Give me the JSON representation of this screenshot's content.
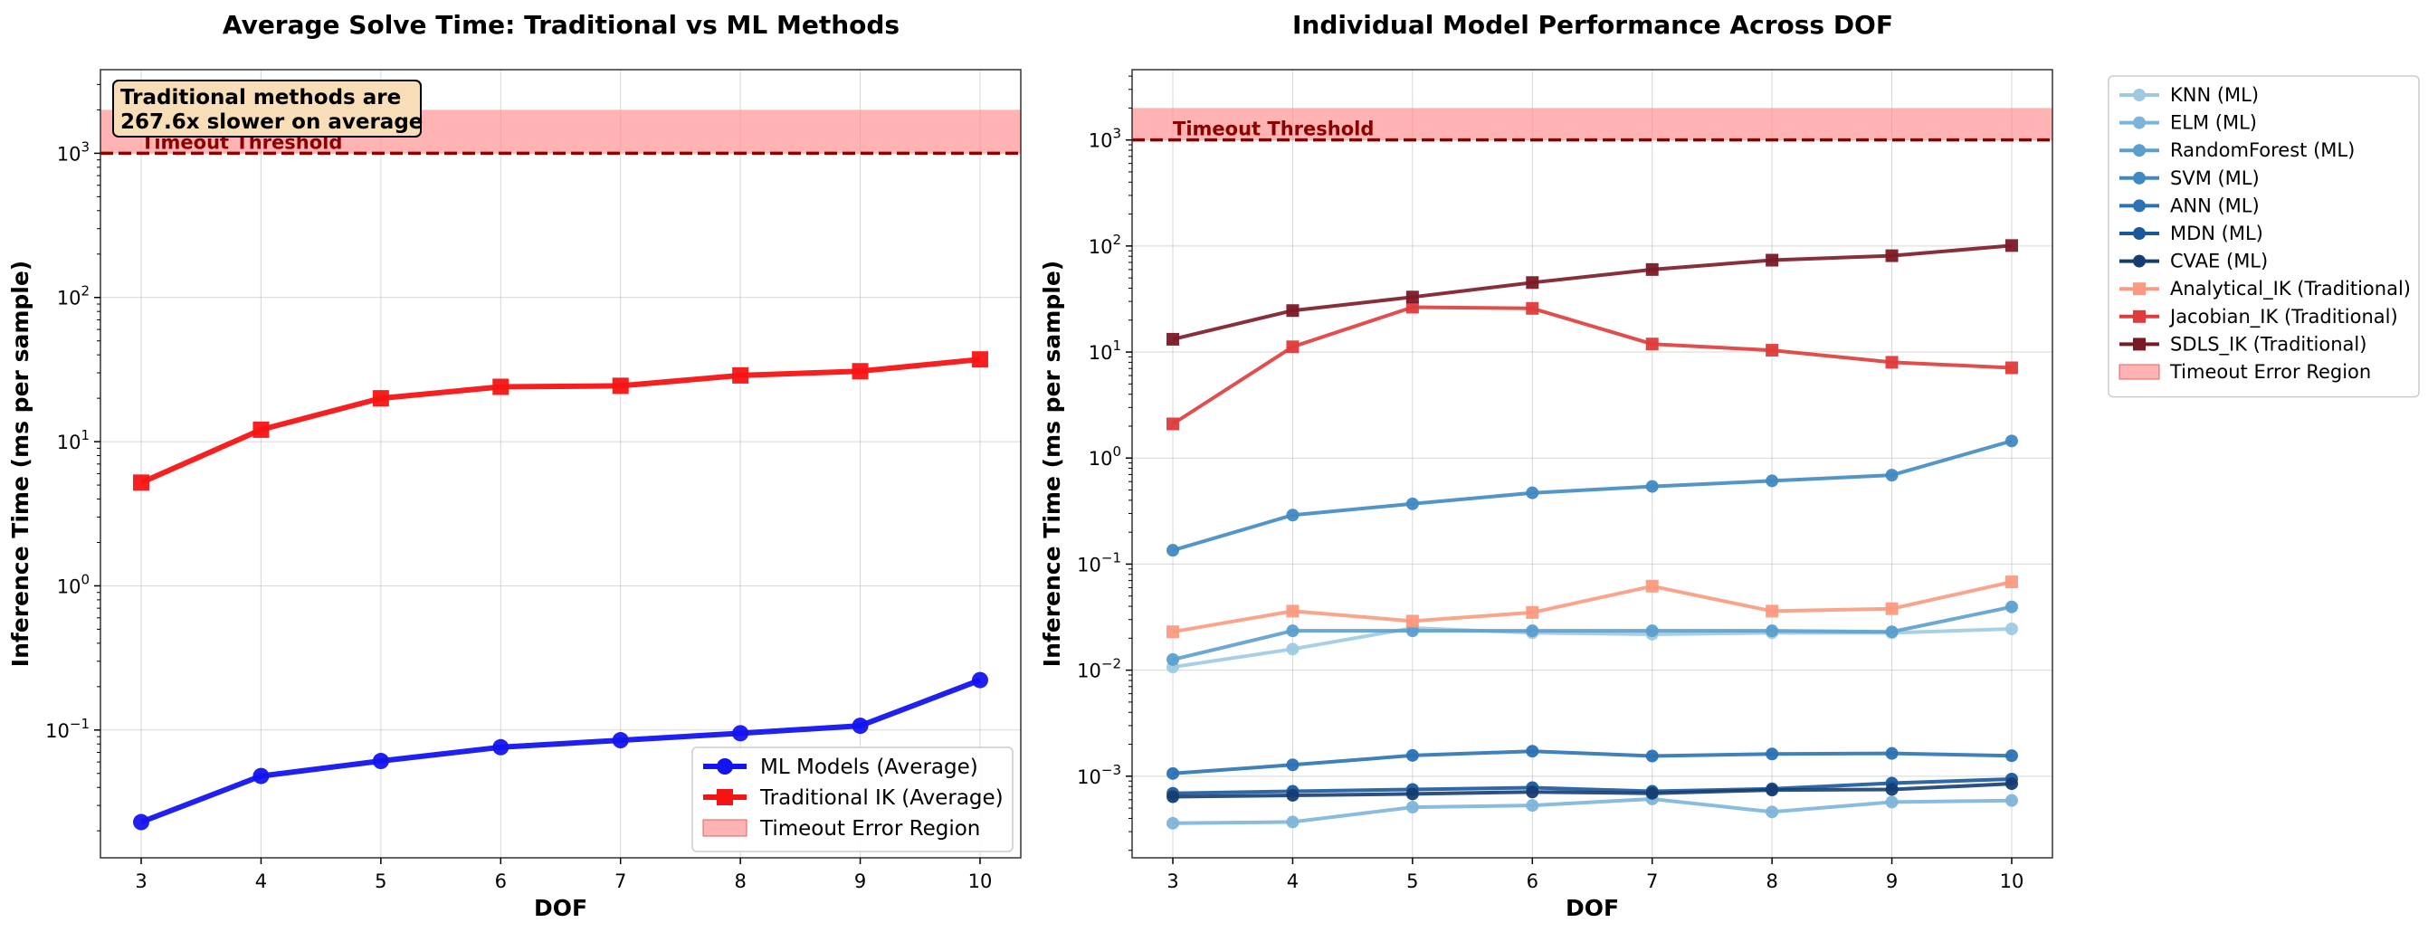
{
  "chart_data": [
    {
      "type": "line",
      "title": "Average Solve Time: Traditional vs ML Methods",
      "xlabel": "DOF",
      "ylabel": "Inference Time (ms per sample)",
      "yscale": "log",
      "ylim": [
        0.013,
        3800
      ],
      "xlim": [
        2.66,
        10.34
      ],
      "x": [
        3,
        4,
        5,
        6,
        7,
        8,
        9,
        10
      ],
      "yticks": [
        {
          "value": 0.1,
          "base": "10",
          "exp": "−1"
        },
        {
          "value": 1,
          "base": "10",
          "exp": "0"
        },
        {
          "value": 10,
          "base": "10",
          "exp": "1"
        },
        {
          "value": 100,
          "base": "10",
          "exp": "2"
        },
        {
          "value": 1000,
          "base": "10",
          "exp": "3"
        }
      ],
      "grid": true,
      "legend_position": "lower-right",
      "threshold": {
        "value": 1000,
        "label": "Timeout Threshold",
        "color": "#8b0000"
      },
      "timeout_region": {
        "ymin": 1000,
        "ymax": 2000,
        "label": "Timeout Error Region",
        "color": "#ff8a8a"
      },
      "annotation": [
        "Traditional methods are",
        "267.6x slower on average"
      ],
      "series": [
        {
          "name": "ML Models (Average)",
          "color": "#1414f0",
          "marker": "circle",
          "values": [
            0.023,
            0.048,
            0.061,
            0.076,
            0.085,
            0.095,
            0.107,
            0.222
          ]
        },
        {
          "name": "Traditional IK (Average)",
          "color": "#f51414",
          "marker": "square",
          "values": [
            5.2,
            12.1,
            20.0,
            24.0,
            24.4,
            28.8,
            30.8,
            37.2
          ]
        }
      ]
    },
    {
      "type": "line",
      "title": "Individual Model Performance Across DOF",
      "xlabel": "DOF",
      "ylabel": "Inference Time (ms per sample)",
      "yscale": "log",
      "ylim": [
        0.00017,
        4600
      ],
      "xlim": [
        2.66,
        10.34
      ],
      "x": [
        3,
        4,
        5,
        6,
        7,
        8,
        9,
        10
      ],
      "yticks": [
        {
          "value": 0.001,
          "base": "10",
          "exp": "−3"
        },
        {
          "value": 0.01,
          "base": "10",
          "exp": "−2"
        },
        {
          "value": 0.1,
          "base": "10",
          "exp": "−1"
        },
        {
          "value": 1,
          "base": "10",
          "exp": "0"
        },
        {
          "value": 10,
          "base": "10",
          "exp": "1"
        },
        {
          "value": 100,
          "base": "10",
          "exp": "2"
        },
        {
          "value": 1000,
          "base": "10",
          "exp": "3"
        }
      ],
      "grid": true,
      "legend_position": "outside-right",
      "threshold": {
        "value": 1000,
        "label": "Timeout Threshold",
        "color": "#8b0000"
      },
      "timeout_region": {
        "ymin": 1000,
        "ymax": 2000,
        "label": "Timeout Error Region",
        "color": "#ff8a8a"
      },
      "series": [
        {
          "name": "KNN (ML)",
          "color": "#9ecae1",
          "marker": "circle",
          "values": [
            0.0107,
            0.0158,
            0.025,
            0.0225,
            0.0218,
            0.0225,
            0.0225,
            0.0245
          ]
        },
        {
          "name": "ELM (ML)",
          "color": "#7db5da",
          "marker": "circle",
          "values": [
            0.00036,
            0.00037,
            0.00051,
            0.00053,
            0.00061,
            0.00046,
            0.00057,
            0.00059
          ]
        },
        {
          "name": "RandomForest (ML)",
          "color": "#5b9fcd",
          "marker": "circle",
          "values": [
            0.0126,
            0.0235,
            0.0235,
            0.0235,
            0.0235,
            0.0235,
            0.023,
            0.0395
          ]
        },
        {
          "name": "SVM (ML)",
          "color": "#4189c2",
          "marker": "circle",
          "values": [
            0.135,
            0.29,
            0.37,
            0.47,
            0.54,
            0.61,
            0.69,
            1.45
          ]
        },
        {
          "name": "ANN (ML)",
          "color": "#2b72b4",
          "marker": "circle",
          "values": [
            0.00106,
            0.00128,
            0.00157,
            0.00172,
            0.00155,
            0.00162,
            0.00164,
            0.00156
          ]
        },
        {
          "name": "MDN (ML)",
          "color": "#1a589d",
          "marker": "circle",
          "values": [
            0.00069,
            0.00072,
            0.00075,
            0.00078,
            0.00072,
            0.00076,
            0.00086,
            0.00094
          ]
        },
        {
          "name": "CVAE (ML)",
          "color": "#163d72",
          "marker": "circle",
          "values": [
            0.00064,
            0.00066,
            0.00068,
            0.00071,
            0.00069,
            0.00074,
            0.00075,
            0.00085
          ]
        },
        {
          "name": "Analytical_IK (Traditional)",
          "color": "#fb9a80",
          "marker": "square",
          "values": [
            0.023,
            0.036,
            0.029,
            0.035,
            0.062,
            0.036,
            0.038,
            0.068
          ]
        },
        {
          "name": "Jacobian_IK (Traditional)",
          "color": "#de3b3b",
          "marker": "square",
          "values": [
            2.1,
            11.2,
            26.5,
            25.8,
            11.9,
            10.4,
            8.0,
            7.1
          ]
        },
        {
          "name": "SDLS_IK (Traditional)",
          "color": "#7a1a26",
          "marker": "square",
          "values": [
            13.2,
            24.6,
            33.0,
            45.2,
            60.0,
            73.5,
            81.0,
            101.0
          ]
        }
      ]
    }
  ]
}
